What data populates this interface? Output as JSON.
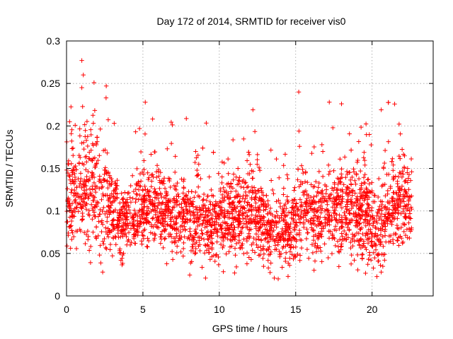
{
  "chart_data": {
    "type": "scatter",
    "title": "Day 172 of 2014, SRMTID for receiver vis0",
    "xlabel": "GPS time / hours",
    "ylabel": "SRMTID / TECUs",
    "xlim": [
      0,
      24
    ],
    "ylim": [
      0,
      0.3
    ],
    "xticks": [
      0,
      5,
      10,
      15,
      20
    ],
    "xtick_labels": [
      "0",
      "5",
      "10",
      "15",
      "20"
    ],
    "yticks": [
      0,
      0.05,
      0.1,
      0.15,
      0.2,
      0.25,
      0.3
    ],
    "ytick_labels": [
      "0",
      "0.05",
      "0.1",
      "0.15",
      "0.2",
      "0.25",
      "0.3"
    ],
    "grid": true,
    "marker": "+",
    "series": [
      {
        "name": "SRMTID",
        "color": "#ff0000",
        "x_range": [
          0,
          22.6
        ],
        "approx_point_count": 2800,
        "description_values": "dense point cloud mostly between 0.05 and 0.15 TECU",
        "notable_points": [
          {
            "x": 1.0,
            "y": 0.277
          },
          {
            "x": 1.1,
            "y": 0.26
          },
          {
            "x": 1.8,
            "y": 0.251
          },
          {
            "x": 2.6,
            "y": 0.247
          },
          {
            "x": 1.0,
            "y": 0.245
          },
          {
            "x": 15.2,
            "y": 0.24
          },
          {
            "x": 17.2,
            "y": 0.228
          },
          {
            "x": 18.0,
            "y": 0.226
          },
          {
            "x": 20.6,
            "y": 0.219
          },
          {
            "x": 12.2,
            "y": 0.219
          },
          {
            "x": 0.2,
            "y": 0.205
          },
          {
            "x": 13.6,
            "y": 0.021
          },
          {
            "x": 9.1,
            "y": 0.021
          },
          {
            "x": 14.5,
            "y": 0.023
          },
          {
            "x": 20.6,
            "y": 0.028
          },
          {
            "x": 11.0,
            "y": 0.027
          }
        ],
        "envelope": [
          {
            "x": 0.5,
            "mean": 0.12,
            "spread": 0.035
          },
          {
            "x": 1.5,
            "mean": 0.13,
            "spread": 0.045
          },
          {
            "x": 2.5,
            "mean": 0.115,
            "spread": 0.04
          },
          {
            "x": 3.5,
            "mean": 0.085,
            "spread": 0.025
          },
          {
            "x": 4.5,
            "mean": 0.095,
            "spread": 0.025
          },
          {
            "x": 5.5,
            "mean": 0.11,
            "spread": 0.025
          },
          {
            "x": 6.5,
            "mean": 0.1,
            "spread": 0.025
          },
          {
            "x": 7.5,
            "mean": 0.09,
            "spread": 0.025
          },
          {
            "x": 8.5,
            "mean": 0.09,
            "spread": 0.028
          },
          {
            "x": 9.5,
            "mean": 0.085,
            "spread": 0.028
          },
          {
            "x": 10.5,
            "mean": 0.09,
            "spread": 0.028
          },
          {
            "x": 11.5,
            "mean": 0.095,
            "spread": 0.03
          },
          {
            "x": 12.5,
            "mean": 0.1,
            "spread": 0.03
          },
          {
            "x": 13.5,
            "mean": 0.075,
            "spread": 0.022
          },
          {
            "x": 14.5,
            "mean": 0.08,
            "spread": 0.025
          },
          {
            "x": 15.5,
            "mean": 0.1,
            "spread": 0.028
          },
          {
            "x": 16.5,
            "mean": 0.09,
            "spread": 0.028
          },
          {
            "x": 17.5,
            "mean": 0.105,
            "spread": 0.032
          },
          {
            "x": 18.5,
            "mean": 0.1,
            "spread": 0.03
          },
          {
            "x": 19.5,
            "mean": 0.095,
            "spread": 0.03
          },
          {
            "x": 20.5,
            "mean": 0.08,
            "spread": 0.03
          },
          {
            "x": 21.5,
            "mean": 0.11,
            "spread": 0.03
          },
          {
            "x": 22.3,
            "mean": 0.105,
            "spread": 0.03
          }
        ]
      }
    ]
  }
}
